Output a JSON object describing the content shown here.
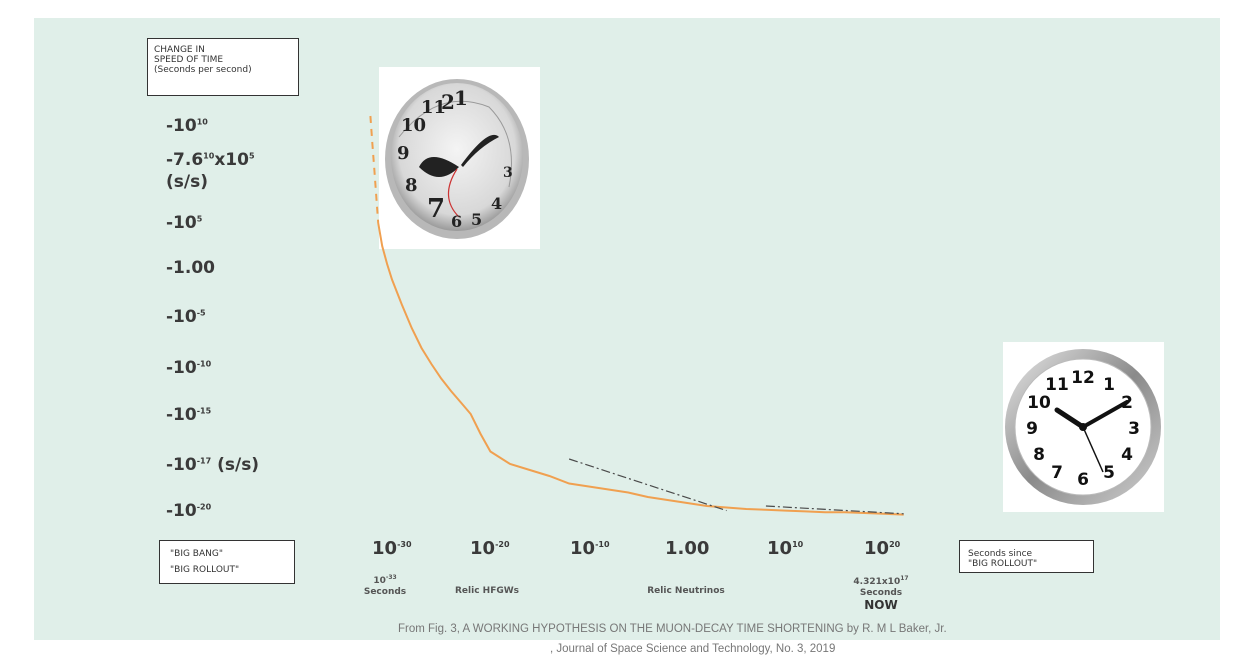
{
  "chart_data": {
    "type": "line",
    "title": "",
    "ylabel_box": [
      "CHANGE IN",
      "SPEED OF TIME",
      "(Seconds per second)"
    ],
    "y_tick_labels": [
      {
        "base": "-10",
        "exp": "10",
        "suffix": ""
      },
      {
        "base": "-7.6",
        "exp": "10",
        "suffix": "x10",
        "exp2": "5",
        "line2": "(s/s)"
      },
      {
        "base": "-10",
        "exp": "5",
        "suffix": ""
      },
      {
        "base": "-1.00",
        "exp": "",
        "suffix": ""
      },
      {
        "base": "-10",
        "exp": "-5",
        "suffix": ""
      },
      {
        "base": "-10",
        "exp": "-10",
        "suffix": ""
      },
      {
        "base": "-10",
        "exp": "-15",
        "suffix": ""
      },
      {
        "base": "-10",
        "exp": "-17",
        "suffix": " (s/s)"
      },
      {
        "base": "-10",
        "exp": "-20",
        "suffix": ""
      }
    ],
    "x_tick_labels": [
      {
        "base": "10",
        "exp": "-30"
      },
      {
        "base": "10",
        "exp": "-20"
      },
      {
        "base": "10",
        "exp": "-10"
      },
      {
        "base": "1.00",
        "exp": ""
      },
      {
        "base": "10",
        "exp": "10"
      },
      {
        "base": "10",
        "exp": "20"
      }
    ],
    "x_annotations": [
      {
        "lines": [
          "10",
          "Seconds"
        ],
        "sup": "-33"
      },
      {
        "lines": [
          "Relic HFGWs"
        ]
      },
      {
        "lines": [
          "Relic Neutrinos"
        ]
      },
      {
        "lines": [
          "4.321x10",
          "Seconds",
          "NOW"
        ],
        "sup": "17"
      }
    ],
    "left_box": [
      "\"BIG BANG\"",
      "\"BIG ROLLOUT\""
    ],
    "xlabel_box": [
      "Seconds since",
      "\"BIG ROLLOUT\""
    ],
    "series": [
      {
        "x_log10": [
          -32.2,
          -32.0,
          -31.8,
          -31.4,
          -31.0,
          -30.5,
          -30.0,
          -29.0,
          -28.0,
          -27.0,
          -26.0,
          -25.0,
          -24.0,
          -23.0,
          -22.0,
          -21.0,
          -20.0,
          -18.0,
          -16.0,
          -14.0,
          -12.0,
          -10.0,
          -8.0,
          -6.0,
          -4.0,
          -2.0,
          0.0,
          2.0,
          4.0,
          6.0,
          8.0,
          10.0,
          12.0,
          14.0,
          16.0,
          18.0,
          20.0,
          22.0
        ],
        "y_log10_magnitude": [
          10.3,
          9.0,
          7.6,
          4.5,
          2.2,
          0.4,
          -1.2,
          -3.8,
          -6.2,
          -8.2,
          -9.8,
          -11.3,
          -12.6,
          -13.8,
          -15.0,
          -15.8,
          -16.5,
          -17.0,
          -17.4,
          -17.8,
          -18.3,
          -18.5,
          -18.7,
          -18.9,
          -19.2,
          -19.4,
          -19.6,
          -19.8,
          -19.9,
          -20.0,
          -20.1,
          -20.2,
          -20.3,
          -20.4,
          -20.4,
          -20.5,
          -20.6,
          -20.7
        ],
        "color": "#f0a050",
        "dashed_start": true
      }
    ],
    "trend_lines": [
      {
        "x_log10": [
          -12.0,
          4.0
        ],
        "y_log10_magnitude": [
          -16.8,
          -20.2
        ],
        "style": "dash-dot",
        "color": "#4a4a4a"
      },
      {
        "x_log10": [
          8.0,
          22.0
        ],
        "y_log10_magnitude": [
          -19.8,
          -20.6
        ],
        "style": "dash-dot",
        "color": "#4a4a4a"
      }
    ],
    "caption_line1": "From Fig. 3, A WORKING HYPOTHESIS ON THE MUON-DECAY TIME SHORTENING by R. M L Baker, Jr.",
    "caption_line2": ", Journal of Space Science and Technology,  No. 3, 2019"
  },
  "images": [
    {
      "name": "melting-clock-icon",
      "digits": [
        "1",
        "2",
        "11",
        "10",
        "9",
        "8",
        "7",
        "6",
        "5",
        "4",
        "3"
      ]
    },
    {
      "name": "wall-clock-icon",
      "digits": [
        "12",
        "1",
        "2",
        "3",
        "4",
        "5",
        "6",
        "7",
        "8",
        "9",
        "10",
        "11"
      ]
    }
  ],
  "colors": {
    "panel": "#e0efe9",
    "curve": "#f0a050",
    "text": "#3a3a3a"
  }
}
